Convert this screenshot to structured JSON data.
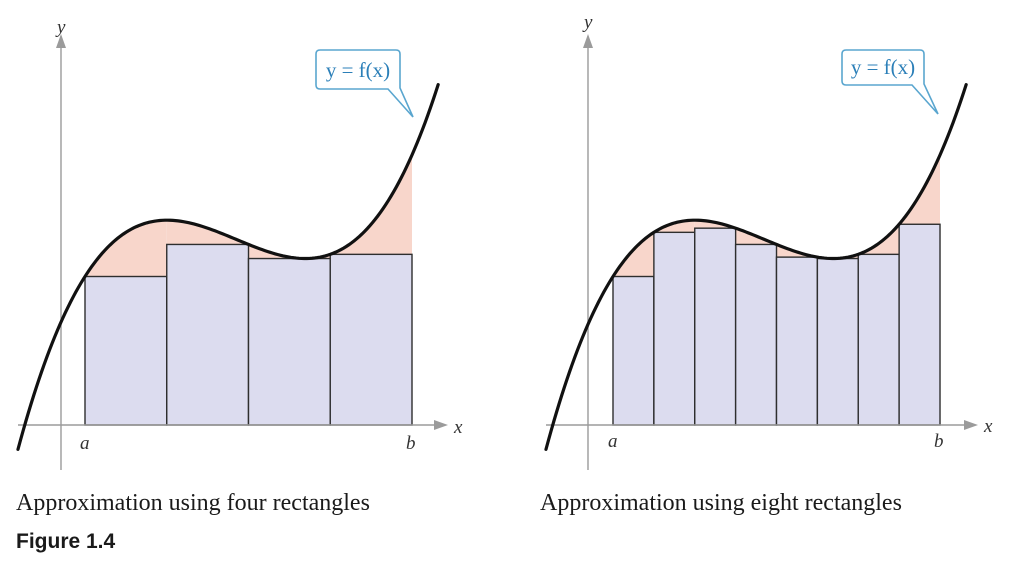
{
  "panels": [
    {
      "id": "left",
      "rectangle_count": 4,
      "caption": "Approximation using four rectangles",
      "callout_label": "y = f(x)",
      "x_axis_label": "x",
      "y_axis_label": "y",
      "interval_start_label": "a",
      "interval_end_label": "b"
    },
    {
      "id": "right",
      "rectangle_count": 8,
      "caption": "Approximation using eight rectangles",
      "callout_label": "y = f(x)",
      "x_axis_label": "x",
      "y_axis_label": "y",
      "interval_start_label": "a",
      "interval_end_label": "b"
    }
  ],
  "figure_label": "Figure 1.4",
  "colors": {
    "rectangle_fill": "#dcdcef",
    "error_fill": "#f8d6cb",
    "curve": "#111111",
    "callout": "#2b7fb8",
    "axis": "#9b9b9b"
  }
}
